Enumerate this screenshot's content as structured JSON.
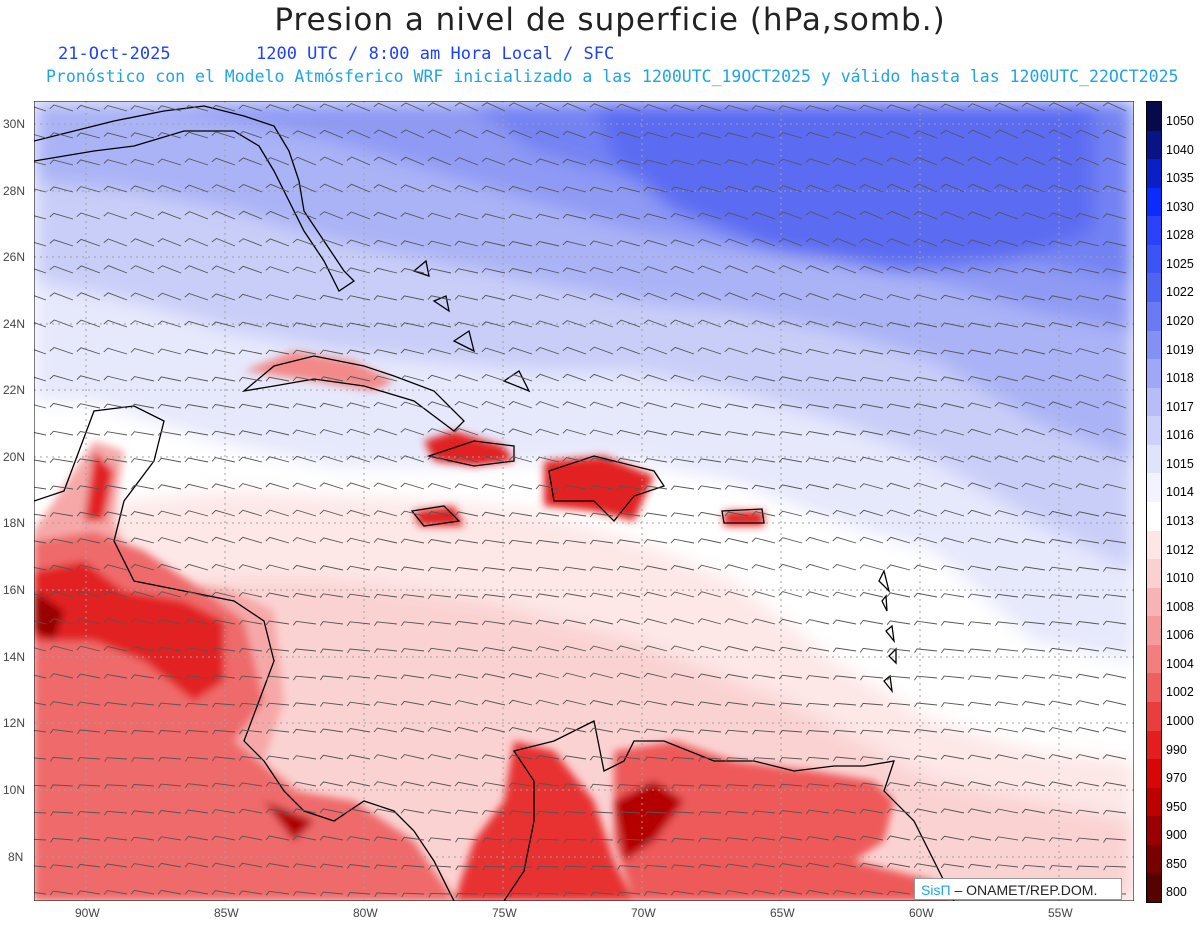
{
  "header": {
    "title": "Presion a nivel de superficie (hPa,somb.)",
    "date": "21-Oct-2025",
    "time_line": "1200 UTC / 8:00 am Hora Local / SFC",
    "model_line": "Pronóstico con el Modelo Atmósferico WRF inicializado a las 1200UTC_19OCT2025 y válido hasta las  1200UTC_22OCT2025"
  },
  "axes": {
    "lat_labels": [
      "30N",
      "28N",
      "26N",
      "24N",
      "22N",
      "20N",
      "18N",
      "16N",
      "14N",
      "12N",
      "10N",
      "8N"
    ],
    "lon_labels": [
      "90W",
      "85W",
      "80W",
      "75W",
      "70W",
      "65W",
      "60W",
      "55W"
    ]
  },
  "legend": {
    "levels": [
      "1050",
      "1040",
      "1035",
      "1030",
      "1028",
      "1025",
      "1022",
      "1020",
      "1019",
      "1018",
      "1017",
      "1016",
      "1015",
      "1014",
      "1013",
      "1012",
      "1010",
      "1008",
      "1006",
      "1004",
      "1002",
      "1000",
      "990",
      "970",
      "950",
      "900",
      "850",
      "800"
    ],
    "colors": [
      "#060a4a",
      "#081386",
      "#0a1fc4",
      "#0b2cff",
      "#2a42fa",
      "#3c54f5",
      "#5064f2",
      "#6a7af2",
      "#8390f4",
      "#9ea8f6",
      "#b6bdf8",
      "#ccd1fa",
      "#e0e3fc",
      "#f2f3fe",
      "#ffffff",
      "#fde6e6",
      "#fbd0d0",
      "#f8b4b4",
      "#f59a9a",
      "#f27e7e",
      "#ee5f5f",
      "#ea3e3e",
      "#e41e1e",
      "#d80707",
      "#bd0000",
      "#9a0000",
      "#7a0000",
      "#560000"
    ]
  },
  "credit": {
    "brand": "SisΠ",
    "org": " – ONAMET/REP.DOM."
  }
}
